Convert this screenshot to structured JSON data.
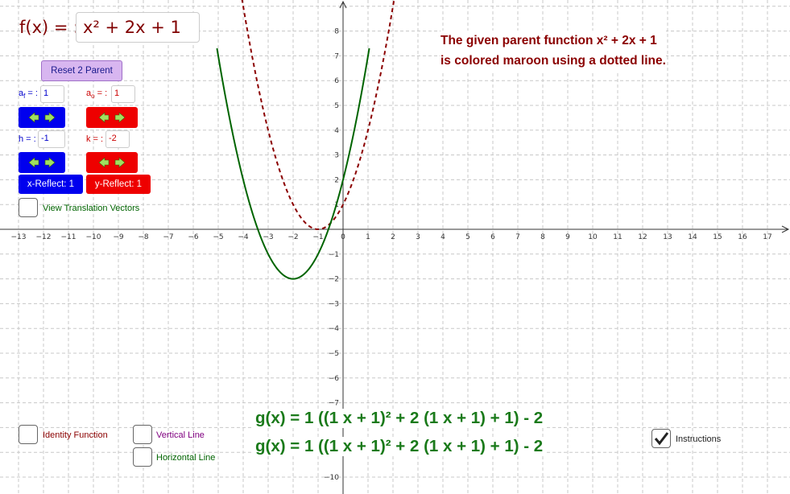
{
  "function": {
    "label": "f(x) = :",
    "value": "x² + 2x + 1"
  },
  "note": {
    "line1": "The given parent function x² + 2x + 1",
    "line2": "is colored maroon using a dotted line."
  },
  "controls": {
    "reset_label": "Reset 2 Parent",
    "af_label": "a",
    "af_sub": "f",
    "af_eq": " = :",
    "af_value": "1",
    "ao_label": "a",
    "ao_sub": "o",
    "ao_eq": " = :",
    "ao_value": "1",
    "h_label": "h = :",
    "h_value": "-1",
    "k_label": "k = :",
    "k_value": "-2",
    "x_reflect_label": "x-Reflect: 1",
    "y_reflect_label": "y-Reflect: 1",
    "view_vectors_label": "View Translation Vectors"
  },
  "checkboxes": {
    "identity_label": "Identity Function",
    "vertical_label": "Vertical Line",
    "horizontal_label": "Horizontal Line",
    "instructions_label": "Instructions",
    "instructions_checked": true,
    "identity_checked": false,
    "vertical_checked": false,
    "horizontal_checked": false,
    "view_vectors_checked": false
  },
  "equations": {
    "g1": "g(x) = 1 ((1 x + 1)² + 2 (1 x + 1) + 1) - 2",
    "g2": "g(x) = 1 ((1 x + 1)² + 2 (1 x + 1) + 1) - 2"
  },
  "graph": {
    "x_ticks": [
      "−13",
      "−12",
      "−11",
      "−10",
      "−9",
      "−8",
      "−7",
      "−6",
      "−5",
      "−4",
      "−3",
      "−2",
      "−1",
      "0",
      "1",
      "2",
      "3",
      "4",
      "5",
      "6",
      "7",
      "8",
      "9",
      "10",
      "11",
      "12",
      "13",
      "14",
      "15",
      "16",
      "17"
    ],
    "y_ticks_pos": [
      "1",
      "2",
      "3",
      "4",
      "5",
      "6",
      "7",
      "8"
    ],
    "y_ticks_neg": [
      "−1",
      "−2",
      "−3",
      "−4",
      "−5",
      "−6",
      "−7",
      "−10"
    ],
    "parent_color": "#8b0000",
    "transformed_color": "#006400",
    "grid_color": "#c8c8c8"
  }
}
